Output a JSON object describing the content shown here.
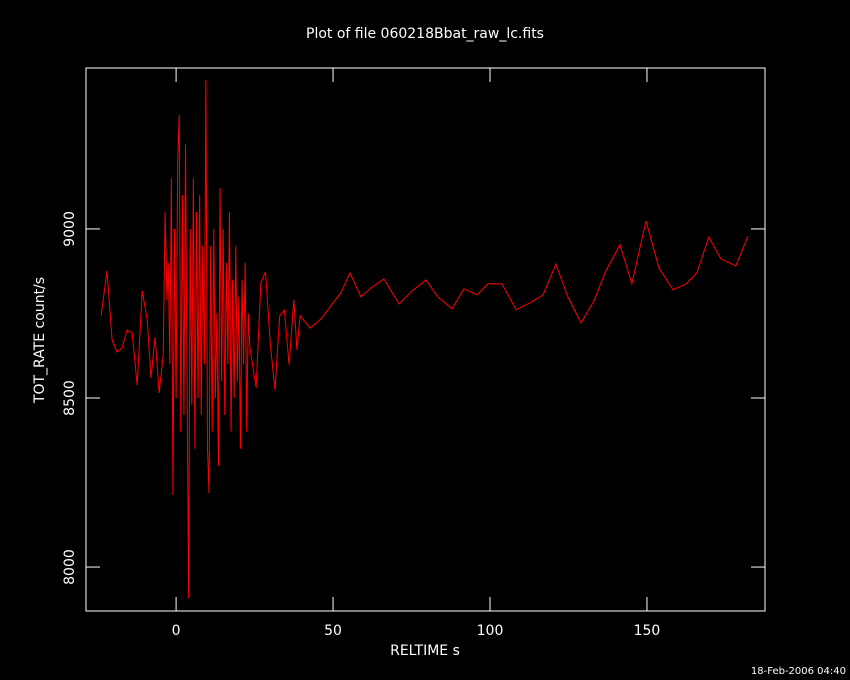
{
  "chart_data": {
    "type": "line",
    "title": "Plot of file 060218Bbat_raw_lc.fits",
    "x_label": "RELTIME  s",
    "y_label": "TOT_RATE  count/s",
    "footer": "18-Feb-2006 04:40",
    "x": [
      -23.9,
      -22.0,
      -20.4,
      -18.8,
      -17.2,
      -15.6,
      -14.0,
      -12.4,
      -10.8,
      -9.2,
      -8.0,
      -6.7,
      -5.4,
      -4.1,
      -3.5,
      -2.9,
      -2.5,
      -2.0,
      -1.5,
      -1.0,
      -0.5,
      0.0,
      0.5,
      1.0,
      1.5,
      2.0,
      2.5,
      3.0,
      3.5,
      4.0,
      4.5,
      5.0,
      5.5,
      6.0,
      6.5,
      7.0,
      7.5,
      8.0,
      8.5,
      9.0,
      9.5,
      10.0,
      10.5,
      11.0,
      11.5,
      12.0,
      12.5,
      13.0,
      13.5,
      14.0,
      14.5,
      15.0,
      15.5,
      16.0,
      16.5,
      17.0,
      17.5,
      18.0,
      18.5,
      19.0,
      19.5,
      20.0,
      20.5,
      21.0,
      21.5,
      22.0,
      22.5,
      23.0,
      23.5,
      24.0,
      25.5,
      27.0,
      28.5,
      30.0,
      31.5,
      33.0,
      34.5,
      36.0,
      37.5,
      38.5,
      39.5,
      42.7,
      46.2,
      50.0,
      52.5,
      55.4,
      58.9,
      62.4,
      66.2,
      71.0,
      75.2,
      79.6,
      83.4,
      87.9,
      91.7,
      95.9,
      99.4,
      103.8,
      108.3,
      112.7,
      116.9,
      121.0,
      124.8,
      129.0,
      133.1,
      136.9,
      141.4,
      145.2,
      149.7,
      153.8,
      158.3,
      162.4,
      165.9,
      169.7,
      173.6,
      178.3,
      182.2
    ],
    "series": [
      {
        "name": "TOT_RATE",
        "color": "#ff0000",
        "values": [
          8743,
          8876,
          8672,
          8636,
          8648,
          8701,
          8692,
          8538,
          8817,
          8731,
          8559,
          8680,
          8515,
          8627,
          9050,
          8790,
          8900,
          8600,
          9150,
          8213,
          9000,
          8500,
          9200,
          9337,
          8400,
          9100,
          8450,
          9250,
          8550,
          7908,
          9000,
          8480,
          9150,
          8350,
          9050,
          8500,
          9100,
          8450,
          8950,
          8600,
          9441,
          8350,
          8219,
          8950,
          8400,
          9000,
          8500,
          8750,
          8300,
          9120,
          8550,
          9000,
          8450,
          8900,
          8600,
          9050,
          8400,
          8850,
          8500,
          8950,
          8550,
          8800,
          8350,
          8850,
          8600,
          8900,
          8400,
          8750,
          8650,
          8620,
          8530,
          8840,
          8873,
          8660,
          8524,
          8743,
          8760,
          8598,
          8790,
          8642,
          8743,
          8707,
          8734,
          8781,
          8811,
          8870,
          8799,
          8828,
          8852,
          8778,
          8817,
          8849,
          8799,
          8764,
          8823,
          8805,
          8838,
          8838,
          8761,
          8781,
          8805,
          8896,
          8799,
          8722,
          8787,
          8876,
          8953,
          8838,
          9024,
          8885,
          8820,
          8837,
          8870,
          8976,
          8911,
          8891,
          8979
        ]
      }
    ],
    "xlim": [
      -28.7,
      187.6
    ],
    "ylim": [
      7870,
      9476
    ],
    "xticks": [
      0,
      50,
      100,
      150
    ],
    "yticks": [
      8000,
      8500,
      9000
    ]
  }
}
